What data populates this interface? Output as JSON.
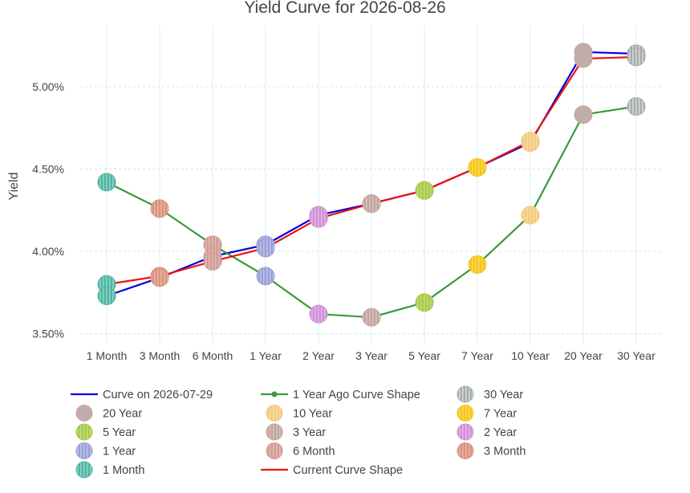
{
  "chart_data": {
    "type": "line",
    "title": "Yield Curve for 2026-08-26",
    "ylabel": "Yield",
    "xlabel": "",
    "ylim": [
      3.44,
      5.37
    ],
    "yticks": [
      3.5,
      4.0,
      4.5,
      5.0
    ],
    "ytick_labels": [
      "3.50%",
      "4.00%",
      "4.50%",
      "5.00%"
    ],
    "categories": [
      "1 Month",
      "3 Month",
      "6 Month",
      "1 Year",
      "2 Year",
      "3 Year",
      "5 Year",
      "7 Year",
      "10 Year",
      "20 Year",
      "30 Year"
    ],
    "grid": true,
    "legend_position": "bottom",
    "line_series": [
      {
        "name": "Curve on 2026-07-29",
        "color": "#0000dd",
        "marker": false,
        "values": [
          3.73,
          3.84,
          3.97,
          4.04,
          4.22,
          4.29,
          4.37,
          4.51,
          4.66,
          5.21,
          5.2
        ]
      },
      {
        "name": "1 Year Ago Curve Shape",
        "color": "#3a9a3a",
        "marker": true,
        "values": [
          4.42,
          4.26,
          4.04,
          3.85,
          3.62,
          3.6,
          3.69,
          3.92,
          4.22,
          4.83,
          4.88
        ]
      },
      {
        "name": "Current Curve Shape",
        "color": "#ee1111",
        "marker": false,
        "values": [
          3.8,
          3.85,
          3.94,
          4.02,
          4.2,
          4.29,
          4.37,
          4.51,
          4.67,
          5.17,
          5.18
        ]
      }
    ],
    "marker_series": [
      {
        "name": "30 Year",
        "color": "#a6adab",
        "stripe": "#d4d9d8",
        "category": "30 Year",
        "points": [
          5.2,
          5.18,
          4.88
        ]
      },
      {
        "name": "20 Year",
        "color": "#cfa99a",
        "stripe": "#aab3c9",
        "category": "20 Year",
        "points": [
          5.21,
          5.17,
          4.83
        ]
      },
      {
        "name": "10 Year",
        "color": "#f3c97e",
        "stripe": "#f9dca6",
        "category": "10 Year",
        "points": [
          4.66,
          4.67,
          4.22
        ]
      },
      {
        "name": "7 Year",
        "color": "#f5c518",
        "stripe": "#f9da5e",
        "category": "7 Year",
        "points": [
          4.51,
          4.51,
          3.92
        ]
      },
      {
        "name": "5 Year",
        "color": "#a9c94a",
        "stripe": "#c3db7b",
        "category": "5 Year",
        "points": [
          4.37,
          4.37,
          3.69
        ]
      },
      {
        "name": "3 Year",
        "color": "#c2a49f",
        "stripe": "#d8c3bf",
        "category": "3 Year",
        "points": [
          4.29,
          4.29,
          3.6
        ]
      },
      {
        "name": "2 Year",
        "color": "#cf8fd6",
        "stripe": "#e3b9e7",
        "category": "2 Year",
        "points": [
          4.22,
          4.2,
          3.62
        ]
      },
      {
        "name": "6 Month",
        "color": "#d19a92",
        "stripe": "#e3bcb6",
        "category": "6 Month",
        "points": [
          4.04,
          3.97,
          3.94
        ]
      },
      {
        "name": "1 Year",
        "color": "#9b9fd6",
        "stripe": "#bfc2e6",
        "category": "1 Year",
        "points": [
          4.04,
          4.02,
          3.85
        ]
      },
      {
        "name": "3 Month",
        "color": "#d9927a",
        "stripe": "#e8b5a4",
        "category": "3 Month",
        "points": [
          4.26,
          3.85,
          3.84
        ]
      },
      {
        "name": "1 Month",
        "color": "#4fb6a4",
        "stripe": "#8fd2c5",
        "category": "1 Month",
        "points": [
          4.42,
          3.8,
          3.73
        ]
      }
    ],
    "legend": [
      [
        "Curve on 2026-07-29",
        "1 Year Ago Curve Shape",
        "30 Year"
      ],
      [
        "20 Year",
        "10 Year",
        "7 Year"
      ],
      [
        "5 Year",
        "3 Year",
        "2 Year"
      ],
      [
        "1 Year",
        "6 Month",
        "3 Month"
      ],
      [
        "1 Month",
        "Current Curve Shape",
        ""
      ]
    ]
  }
}
